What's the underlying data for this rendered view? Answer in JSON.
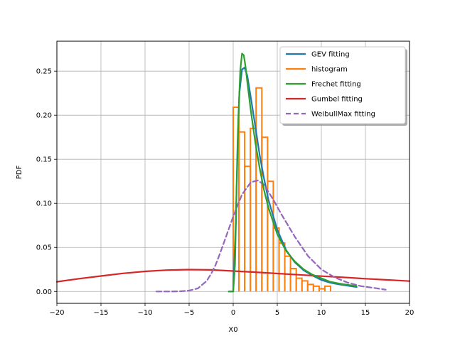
{
  "chart_data": {
    "type": "line",
    "title": "",
    "xlabel": "X0",
    "ylabel": "PDF",
    "xlim": [
      -20,
      20
    ],
    "ylim": [
      -0.0135,
      0.284
    ],
    "xticks": [
      -20,
      -15,
      -10,
      -5,
      0,
      5,
      10,
      15,
      20
    ],
    "yticks": [
      0.0,
      0.05,
      0.1,
      0.15,
      0.2,
      0.25
    ],
    "ytick_labels": [
      "0.00",
      "0.05",
      "0.10",
      "0.15",
      "0.20",
      "0.25"
    ],
    "xtick_labels": [
      "−20",
      "−15",
      "−10",
      "−5",
      "0",
      "5",
      "10",
      "15",
      "20"
    ],
    "grid": true,
    "legend_position": "top-right",
    "legend": [
      {
        "label": "GEV fitting",
        "color": "#1f77b4",
        "dashed": false
      },
      {
        "label": "histogram",
        "color": "#ff7f0e",
        "dashed": false
      },
      {
        "label": "Frechet fitting",
        "color": "#2ca02c",
        "dashed": false
      },
      {
        "label": "Gumbel fitting",
        "color": "#d62728",
        "dashed": false
      },
      {
        "label": "WeibullMax fitting",
        "color": "#9467bd",
        "dashed": true
      }
    ],
    "histogram": {
      "name": "histogram",
      "color": "#ff7f0e",
      "bin_edges": [
        0.0,
        0.65,
        1.3,
        1.95,
        2.6,
        3.25,
        3.9,
        4.55,
        5.2,
        5.85,
        6.5,
        7.15,
        7.8,
        8.45,
        9.1,
        9.75,
        10.4,
        11.05
      ],
      "values": [
        0.209,
        0.181,
        0.142,
        0.185,
        0.231,
        0.175,
        0.125,
        0.072,
        0.055,
        0.04,
        0.026,
        0.015,
        0.012,
        0.008,
        0.006,
        0.003,
        0.006
      ]
    },
    "series": [
      {
        "name": "GEV fitting",
        "color": "#1f77b4",
        "x": [
          -0.5,
          0.0,
          0.3,
          0.5,
          0.7,
          1.0,
          1.3,
          1.6,
          2.0,
          2.5,
          3.0,
          3.5,
          4.0,
          5.0,
          6.0,
          7.0,
          8.0,
          9.0,
          10.0,
          11.0,
          12.0,
          14.0
        ],
        "values": [
          0.0,
          0.0,
          0.08,
          0.17,
          0.225,
          0.252,
          0.254,
          0.245,
          0.22,
          0.188,
          0.155,
          0.128,
          0.104,
          0.07,
          0.047,
          0.033,
          0.024,
          0.018,
          0.013,
          0.01,
          0.008,
          0.005
        ]
      },
      {
        "name": "Frechet fitting",
        "color": "#2ca02c",
        "x": [
          -0.5,
          0.0,
          0.2,
          0.4,
          0.6,
          0.8,
          1.0,
          1.2,
          1.4,
          1.6,
          2.0,
          2.5,
          3.0,
          3.5,
          4.0,
          5.0,
          6.0,
          7.0,
          8.0,
          9.0,
          10.0,
          11.0,
          12.0,
          14.0
        ],
        "values": [
          0.0,
          0.0,
          0.03,
          0.12,
          0.2,
          0.25,
          0.27,
          0.268,
          0.255,
          0.238,
          0.205,
          0.17,
          0.14,
          0.115,
          0.095,
          0.065,
          0.046,
          0.034,
          0.025,
          0.019,
          0.015,
          0.011,
          0.009,
          0.006
        ]
      },
      {
        "name": "Gumbel fitting",
        "color": "#d62728",
        "x": [
          -20,
          -17.5,
          -15,
          -12.5,
          -10,
          -7.5,
          -5,
          -2.5,
          0,
          2.5,
          5,
          7.5,
          10,
          12.5,
          15,
          17.5,
          20
        ],
        "values": [
          0.011,
          0.0145,
          0.0175,
          0.0205,
          0.0228,
          0.0242,
          0.0248,
          0.0245,
          0.0232,
          0.0219,
          0.0204,
          0.0189,
          0.0174,
          0.016,
          0.0145,
          0.0131,
          0.0117
        ]
      },
      {
        "name": "WeibullMax fitting",
        "color": "#9467bd",
        "dashed": true,
        "x": [
          -8.7,
          -7,
          -6,
          -5,
          -4,
          -3,
          -2.5,
          -2,
          -1.5,
          -1,
          0,
          1,
          2,
          2.8,
          3.5,
          4.5,
          5.5,
          7,
          8.5,
          10,
          11.5,
          13,
          14.5,
          16,
          17.3
        ],
        "values": [
          0.0,
          0.0,
          0.0002,
          0.001,
          0.0035,
          0.012,
          0.02,
          0.03,
          0.043,
          0.057,
          0.085,
          0.11,
          0.124,
          0.126,
          0.121,
          0.105,
          0.087,
          0.062,
          0.04,
          0.025,
          0.016,
          0.01,
          0.006,
          0.004,
          0.002
        ]
      }
    ]
  }
}
